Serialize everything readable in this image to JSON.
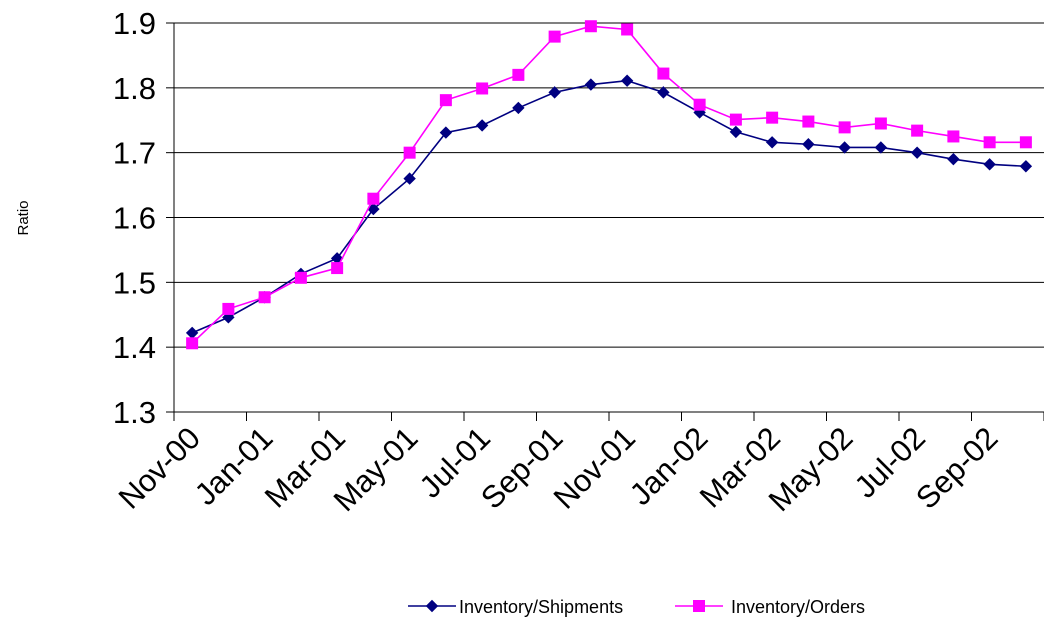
{
  "chart_data": {
    "type": "line",
    "ylabel": "Ratio",
    "ylim": [
      1.3,
      1.9
    ],
    "yticks": [
      "1.3",
      "1.4",
      "1.5",
      "1.6",
      "1.7",
      "1.8",
      "1.9"
    ],
    "grid": true,
    "legend_position": "bottom",
    "categories": [
      "Nov-00",
      "Dec-00",
      "Jan-01",
      "Feb-01",
      "Mar-01",
      "Apr-01",
      "May-01",
      "Jun-01",
      "Jul-01",
      "Aug-01",
      "Sep-01",
      "Oct-01",
      "Nov-01",
      "Dec-01",
      "Jan-02",
      "Feb-02",
      "Mar-02",
      "Apr-02",
      "May-02",
      "Jun-02",
      "Jul-02",
      "Aug-02",
      "Sep-02",
      "Oct-02"
    ],
    "x_tick_labels": [
      "Nov-00",
      "Jan-01",
      "Mar-01",
      "May-01",
      "Jul-01",
      "Sep-01",
      "Nov-01",
      "Jan-02",
      "Mar-02",
      "May-02",
      "Jul-02",
      "Sep-02"
    ],
    "series": [
      {
        "name": "Inventory/Shipments",
        "color": "#000080",
        "marker": "diamond",
        "values": [
          1.422,
          1.446,
          1.477,
          1.513,
          1.537,
          1.613,
          1.66,
          1.731,
          1.742,
          1.769,
          1.793,
          1.805,
          1.811,
          1.793,
          1.762,
          1.732,
          1.716,
          1.713,
          1.708,
          1.708,
          1.7,
          1.69,
          1.682,
          1.679
        ]
      },
      {
        "name": "Inventory/Orders",
        "color": "#FF00FF",
        "marker": "square",
        "values": [
          1.406,
          1.459,
          1.477,
          1.507,
          1.522,
          1.629,
          1.7,
          1.781,
          1.799,
          1.82,
          1.879,
          1.895,
          1.89,
          1.822,
          1.774,
          1.751,
          1.754,
          1.748,
          1.739,
          1.745,
          1.734,
          1.725,
          1.716,
          1.716
        ]
      }
    ]
  }
}
